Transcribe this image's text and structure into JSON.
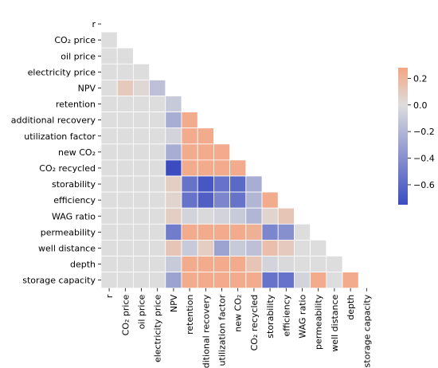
{
  "chart_data": {
    "type": "heatmap",
    "title": "",
    "xlabel": "",
    "ylabel": "",
    "grid": false,
    "mask": "upper-triangle-and-diagonal",
    "variables": [
      "r",
      "CO₂ price",
      "oil price",
      "electricity price",
      "NPV",
      "retention",
      "additional recovery",
      "utilization factor",
      "new CO₂",
      "CO₂ recycled",
      "storability",
      "efficiency",
      "WAG ratio",
      "permeability",
      "well distance",
      "depth",
      "storage capacity"
    ],
    "matrix": [
      [],
      [
        0.0
      ],
      [
        0.0,
        0.0
      ],
      [
        0.0,
        0.0,
        0.0
      ],
      [
        0.0,
        0.1,
        0.03,
        -0.15
      ],
      [
        0.0,
        0.0,
        0.0,
        0.0,
        -0.1
      ],
      [
        0.0,
        0.0,
        0.0,
        0.0,
        -0.25,
        0.25
      ],
      [
        0.0,
        0.0,
        0.0,
        0.0,
        -0.05,
        0.25,
        0.25
      ],
      [
        0.0,
        0.0,
        0.0,
        0.0,
        -0.25,
        0.25,
        0.25,
        0.25
      ],
      [
        0.0,
        0.0,
        0.0,
        0.0,
        -0.75,
        0.25,
        0.25,
        0.25,
        0.25
      ],
      [
        0.0,
        0.0,
        0.0,
        0.0,
        0.08,
        -0.55,
        -0.7,
        -0.55,
        -0.6,
        -0.25
      ],
      [
        0.0,
        0.0,
        0.0,
        0.0,
        0.05,
        -0.55,
        -0.65,
        -0.45,
        -0.55,
        -0.2,
        0.25
      ],
      [
        0.0,
        0.0,
        0.0,
        0.0,
        0.08,
        -0.05,
        -0.02,
        -0.05,
        -0.1,
        -0.2,
        0.05,
        0.12
      ],
      [
        0.0,
        0.0,
        0.0,
        0.0,
        -0.5,
        0.25,
        0.25,
        0.25,
        0.25,
        0.22,
        -0.45,
        -0.4,
        0.0
      ],
      [
        0.0,
        0.0,
        0.0,
        0.0,
        0.12,
        -0.1,
        0.08,
        -0.3,
        -0.1,
        -0.15,
        0.15,
        0.1,
        0.0,
        0.0
      ],
      [
        0.0,
        0.0,
        0.0,
        0.0,
        -0.1,
        0.25,
        0.25,
        0.25,
        0.25,
        0.12,
        -0.05,
        -0.02,
        0.0,
        0.0,
        0.0
      ],
      [
        0.0,
        0.0,
        0.0,
        0.0,
        -0.3,
        0.25,
        0.25,
        0.25,
        0.25,
        0.25,
        -0.55,
        -0.55,
        -0.05,
        0.25,
        0.0,
        0.25
      ]
    ],
    "vmin": -0.75,
    "vmax": 0.28,
    "colormap": {
      "name": "coolwarm",
      "low": "#3b4cc0",
      "mid": "#dddddd",
      "high": "#f4a582"
    },
    "colorbar": {
      "ticks": [
        0.2,
        0.0,
        -0.2,
        -0.4,
        -0.6
      ],
      "tick_labels": [
        "0.2",
        "0.0",
        "−0.2",
        "−0.4",
        "−0.6"
      ]
    },
    "legend": "right"
  }
}
